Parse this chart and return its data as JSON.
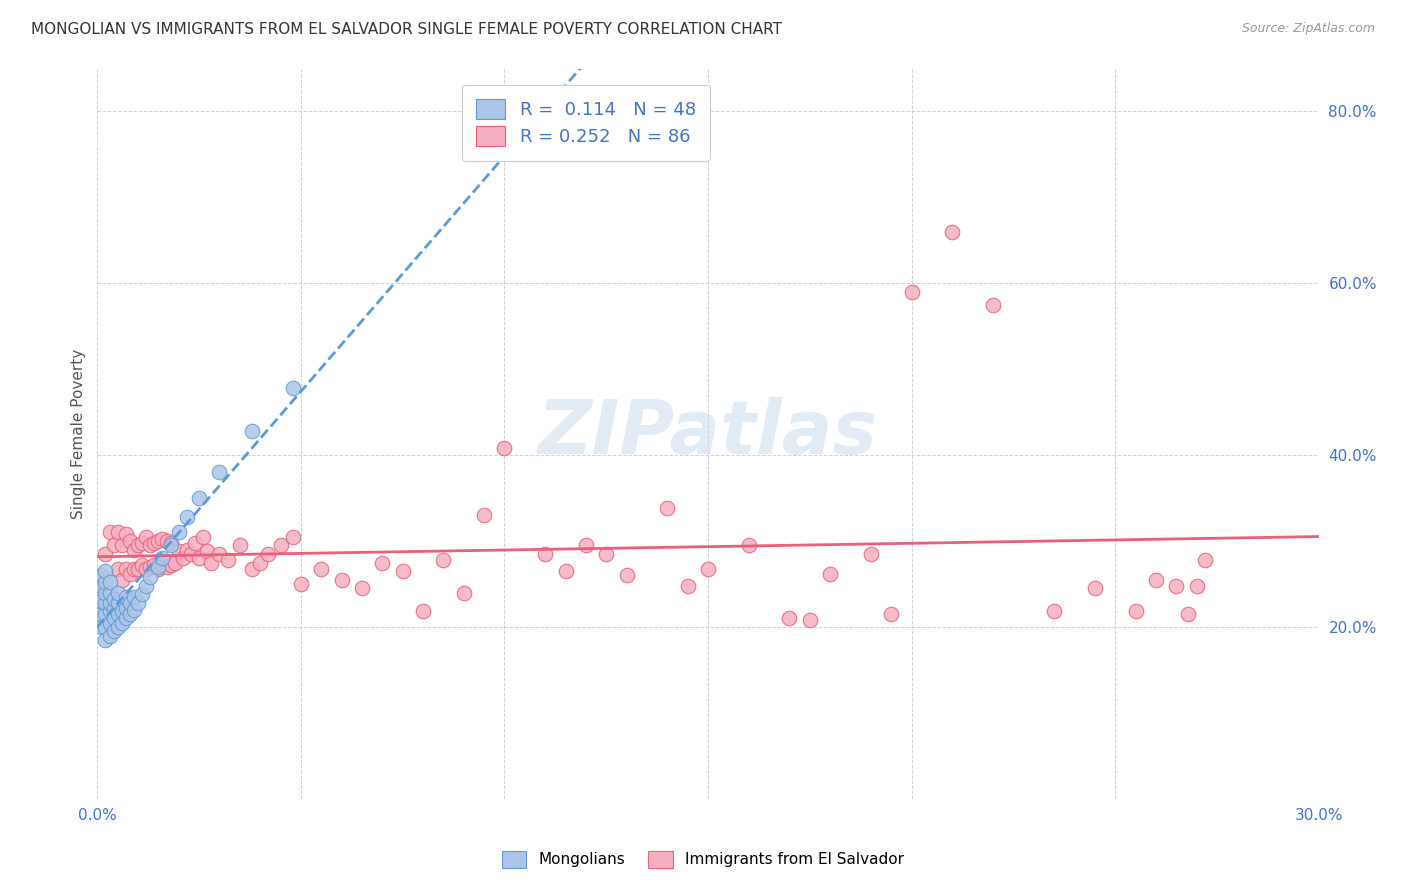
{
  "title": "MONGOLIAN VS IMMIGRANTS FROM EL SALVADOR SINGLE FEMALE POVERTY CORRELATION CHART",
  "source": "Source: ZipAtlas.com",
  "ylabel": "Single Female Poverty",
  "xlim": [
    0.0,
    0.3
  ],
  "ylim": [
    0.0,
    0.85
  ],
  "xtick_positions": [
    0.0,
    0.05,
    0.1,
    0.15,
    0.2,
    0.25,
    0.3
  ],
  "xtick_labels": [
    "0.0%",
    "",
    "",
    "",
    "",
    "",
    "30.0%"
  ],
  "ytick_positions": [
    0.0,
    0.2,
    0.4,
    0.6,
    0.8
  ],
  "ytick_labels": [
    "",
    "20.0%",
    "40.0%",
    "60.0%",
    "80.0%"
  ],
  "mongolian_R": 0.114,
  "mongolian_N": 48,
  "salvador_R": 0.252,
  "salvador_N": 86,
  "mongolian_color": "#adc6e8",
  "salvador_color": "#f5afc0",
  "mongolian_edge_color": "#5b9bd5",
  "salvador_edge_color": "#e8607a",
  "mongolian_line_color": "#5b9bd5",
  "salvador_line_color": "#e8607a",
  "watermark_color": "#c5d8ec",
  "legend_color": "#4472c4",
  "mongolians_x": [
    0.001,
    0.001,
    0.001,
    0.001,
    0.001,
    0.002,
    0.002,
    0.002,
    0.002,
    0.002,
    0.002,
    0.002,
    0.003,
    0.003,
    0.003,
    0.003,
    0.003,
    0.003,
    0.004,
    0.004,
    0.004,
    0.004,
    0.005,
    0.005,
    0.005,
    0.005,
    0.006,
    0.006,
    0.007,
    0.007,
    0.007,
    0.008,
    0.008,
    0.009,
    0.009,
    0.01,
    0.011,
    0.012,
    0.013,
    0.015,
    0.016,
    0.018,
    0.02,
    0.022,
    0.025,
    0.03,
    0.038,
    0.048
  ],
  "mongolians_y": [
    0.2,
    0.215,
    0.23,
    0.248,
    0.26,
    0.185,
    0.2,
    0.215,
    0.228,
    0.24,
    0.252,
    0.265,
    0.19,
    0.205,
    0.218,
    0.228,
    0.24,
    0.252,
    0.195,
    0.21,
    0.222,
    0.232,
    0.2,
    0.215,
    0.228,
    0.24,
    0.205,
    0.218,
    0.21,
    0.222,
    0.235,
    0.215,
    0.228,
    0.22,
    0.235,
    0.228,
    0.238,
    0.248,
    0.258,
    0.27,
    0.28,
    0.295,
    0.31,
    0.328,
    0.35,
    0.38,
    0.428,
    0.478
  ],
  "salvador_x": [
    0.001,
    0.002,
    0.003,
    0.004,
    0.005,
    0.005,
    0.006,
    0.006,
    0.007,
    0.007,
    0.008,
    0.008,
    0.009,
    0.009,
    0.01,
    0.01,
    0.011,
    0.011,
    0.012,
    0.012,
    0.013,
    0.013,
    0.014,
    0.014,
    0.015,
    0.015,
    0.016,
    0.016,
    0.017,
    0.017,
    0.018,
    0.018,
    0.019,
    0.02,
    0.021,
    0.022,
    0.023,
    0.024,
    0.025,
    0.026,
    0.027,
    0.028,
    0.03,
    0.032,
    0.035,
    0.038,
    0.04,
    0.042,
    0.045,
    0.048,
    0.05,
    0.055,
    0.06,
    0.065,
    0.07,
    0.075,
    0.08,
    0.085,
    0.09,
    0.095,
    0.1,
    0.11,
    0.115,
    0.12,
    0.125,
    0.13,
    0.14,
    0.145,
    0.15,
    0.16,
    0.17,
    0.175,
    0.18,
    0.19,
    0.195,
    0.2,
    0.21,
    0.22,
    0.235,
    0.245,
    0.255,
    0.26,
    0.265,
    0.268,
    0.27,
    0.272
  ],
  "salvador_y": [
    0.248,
    0.285,
    0.31,
    0.295,
    0.268,
    0.31,
    0.255,
    0.295,
    0.268,
    0.308,
    0.262,
    0.3,
    0.268,
    0.29,
    0.268,
    0.295,
    0.272,
    0.298,
    0.268,
    0.305,
    0.27,
    0.295,
    0.272,
    0.298,
    0.268,
    0.3,
    0.272,
    0.302,
    0.27,
    0.3,
    0.272,
    0.298,
    0.275,
    0.288,
    0.28,
    0.29,
    0.285,
    0.298,
    0.28,
    0.305,
    0.288,
    0.275,
    0.285,
    0.278,
    0.295,
    0.268,
    0.275,
    0.285,
    0.295,
    0.305,
    0.25,
    0.268,
    0.255,
    0.245,
    0.275,
    0.265,
    0.218,
    0.278,
    0.24,
    0.33,
    0.408,
    0.285,
    0.265,
    0.295,
    0.285,
    0.26,
    0.338,
    0.248,
    0.268,
    0.295,
    0.21,
    0.208,
    0.262,
    0.285,
    0.215,
    0.59,
    0.66,
    0.575,
    0.218,
    0.245,
    0.218,
    0.255,
    0.248,
    0.215,
    0.248,
    0.278
  ]
}
